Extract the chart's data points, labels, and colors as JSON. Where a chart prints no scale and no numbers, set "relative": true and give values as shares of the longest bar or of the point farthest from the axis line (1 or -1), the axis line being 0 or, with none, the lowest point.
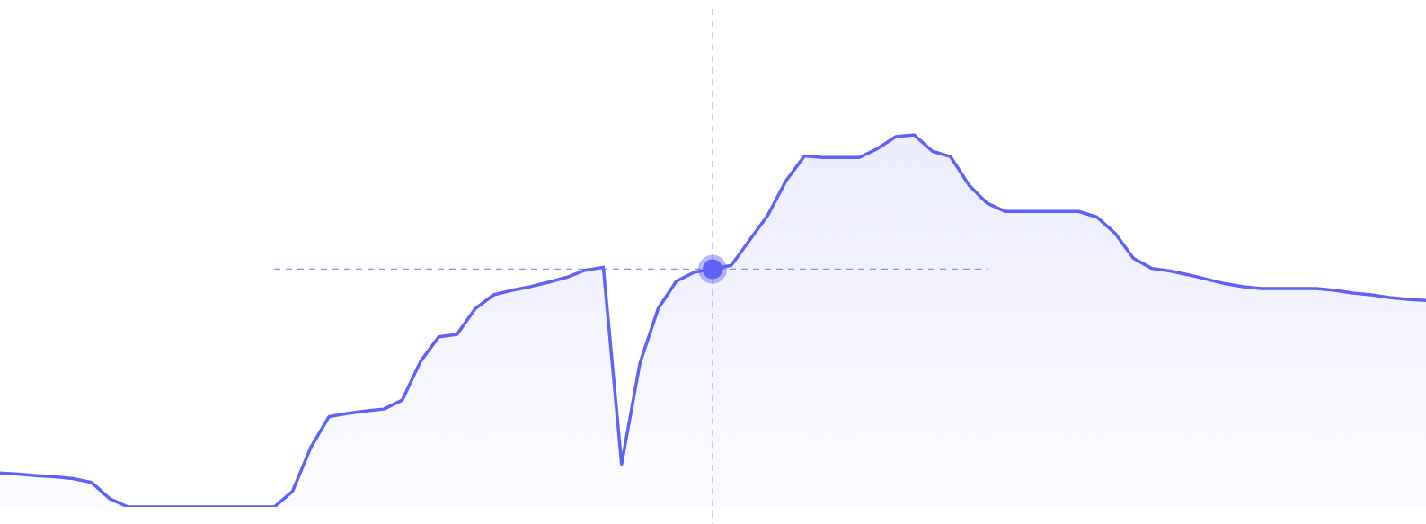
{
  "chart_data": {
    "type": "area",
    "relative": true,
    "ref_lines": [
      {
        "axis": "y",
        "value": 0.639,
        "color": "#5e62f5",
        "line_style": "dashed"
      }
    ],
    "categories": [
      null,
      null,
      null,
      null,
      null,
      null,
      null,
      null,
      null,
      null,
      null,
      null,
      null,
      null,
      null,
      null,
      null,
      null,
      null,
      null,
      null,
      null,
      null,
      null,
      null,
      null,
      null,
      null,
      null,
      null,
      null,
      null,
      null,
      null,
      null,
      null,
      null,
      null,
      null,
      null,
      null,
      null,
      null,
      null,
      null,
      null,
      null,
      null,
      null,
      null,
      null,
      null,
      null,
      null,
      null,
      null,
      null,
      null,
      null,
      null,
      null,
      null,
      null,
      null,
      null,
      null,
      null,
      null,
      null,
      null,
      null,
      null,
      null,
      null,
      null,
      null,
      null,
      null,
      null
    ],
    "series": [
      {
        "color": "#5e62f5",
        "values": [
          0.091,
          0.088,
          0.084,
          0.081,
          0.076,
          0.066,
          0.022,
          0,
          0,
          0,
          0,
          0,
          0,
          0,
          0,
          0,
          0.042,
          0.16,
          0.243,
          0.251,
          0.258,
          0.263,
          0.287,
          0.391,
          0.457,
          0.464,
          0.533,
          0.57,
          0.582,
          0.592,
          0.604,
          0.617,
          0.636,
          0.644,
          0.115,
          0.386,
          0.533,
          0.607,
          0.631,
          0.639,
          0.649,
          0.717,
          0.784,
          0.877,
          0.943,
          0.939,
          0.939,
          0.939,
          0.963,
          0.995,
          1,
          0.956,
          0.941,
          0.865,
          0.816,
          0.794,
          0.794,
          0.794,
          0.794,
          0.794,
          0.779,
          0.735,
          0.668,
          0.641,
          0.634,
          0.624,
          0.612,
          0.6,
          0.592,
          0.587,
          0.587,
          0.587,
          0.587,
          0.582,
          0.575,
          0.57,
          0.563,
          0.558,
          0.555
        ]
      }
    ]
  }
}
